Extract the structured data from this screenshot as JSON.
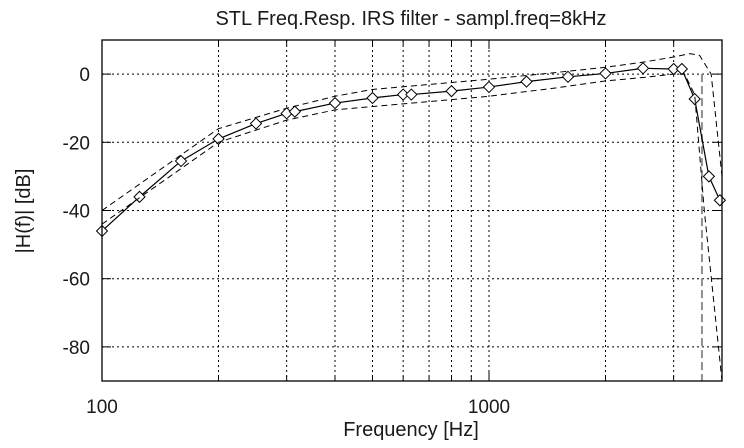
{
  "chart_data": {
    "type": "line",
    "title": "STL Freq.Resp. IRS filter - sampl.freq=8kHz",
    "xlabel": "Frequency [Hz]",
    "ylabel": "|H(f)| [dB]",
    "x_scale": "log",
    "xlim": [
      100,
      4000
    ],
    "ylim": [
      -90,
      10
    ],
    "x_ticks": [
      100,
      1000
    ],
    "x_tick_labels": [
      "100",
      "1000"
    ],
    "x_minor_grid": [
      200,
      300,
      400,
      500,
      600,
      700,
      800,
      900,
      2000,
      3000,
      4000
    ],
    "y_ticks": [
      0,
      -20,
      -40,
      -60,
      -80
    ],
    "y_tick_labels": [
      "0",
      "-20",
      "-40",
      "-60",
      "-80"
    ],
    "grid": true,
    "legend": "none",
    "vertical_marker_x": 3550,
    "colors": {
      "line": "#000000",
      "grid": "#000000",
      "marker": "#909090"
    },
    "series": [
      {
        "style": "solid-diamond",
        "x": [
          100,
          125,
          160,
          200,
          250,
          300,
          315,
          400,
          500,
          600,
          630,
          800,
          1000,
          1250,
          1600,
          2000,
          2500,
          3000,
          3150,
          3400,
          3700,
          3950
        ],
        "y": [
          -46,
          -36,
          -25.5,
          -19,
          -14.5,
          -11.5,
          -11,
          -8.5,
          -7,
          -6,
          -6,
          -5,
          -3.8,
          -2.2,
          -0.8,
          0.2,
          1.7,
          1.5,
          1.5,
          -7.3,
          -30,
          -37
        ]
      },
      {
        "style": "dashed-upper",
        "x": [
          100,
          200,
          300,
          400,
          500,
          1000,
          1500,
          2000,
          2500,
          3000,
          3300,
          3500,
          3750,
          4000
        ],
        "y": [
          -40,
          -16,
          -10,
          -6.5,
          -4.5,
          -1.5,
          0.5,
          2.0,
          3.5,
          5.0,
          6.0,
          5.5,
          0,
          -30
        ]
      },
      {
        "style": "dashed-lower",
        "x": [
          100,
          200,
          300,
          400,
          500,
          1000,
          1500,
          2000,
          2500,
          3000,
          3200,
          3400,
          3600,
          4000
        ],
        "y": [
          -44,
          -20,
          -13.5,
          -10.5,
          -9.5,
          -6.5,
          -4,
          -2.0,
          -1.0,
          0.0,
          0.0,
          -6,
          -40,
          -90
        ]
      }
    ]
  }
}
